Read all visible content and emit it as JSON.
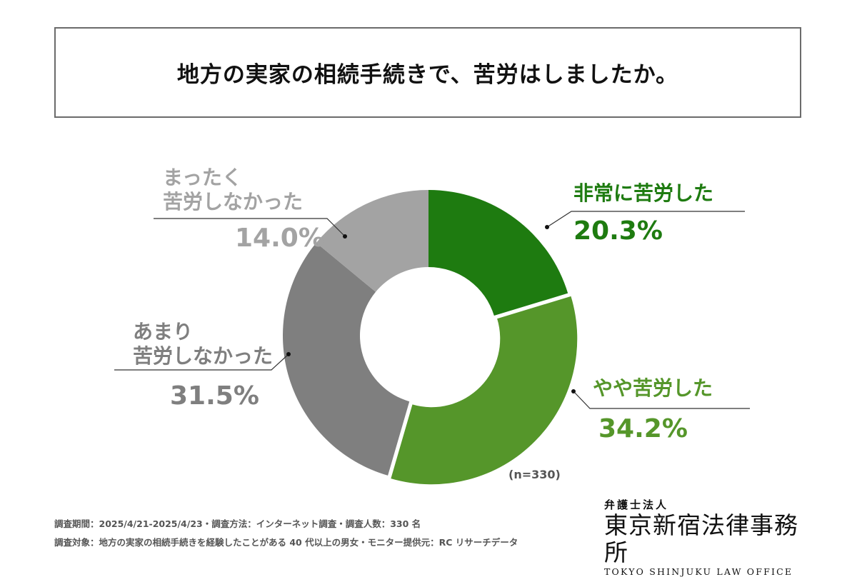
{
  "title": "地方の実家の相続手続きで、苦労はしましたか。",
  "chart_data": {
    "type": "pie",
    "title": "地方の実家の相続手続きで、苦労はしましたか。",
    "categories": [
      "非常に苦労した",
      "やや苦労した",
      "あまり\n苦労しなかった",
      "まったく\n苦労しなかった"
    ],
    "values": [
      20.3,
      34.2,
      31.5,
      14.0
    ],
    "value_labels": [
      "20.3%",
      "34.2%",
      "31.5%",
      "14.0%"
    ],
    "colors": [
      "#1e7b10",
      "#55962a",
      "#7f7f7f",
      "#a3a3a3"
    ],
    "label_colors": [
      "#1e7b10",
      "#55962a",
      "#7f7f7f",
      "#a3a3a3"
    ],
    "donut": true,
    "start": "12 o'clock",
    "direction": "clockwise",
    "note": "(n=330)"
  },
  "footer": {
    "line1": "調査期間：2025/4/21-2025/4/23・調査方法：インターネット調査・調査人数：330 名",
    "line2": "調査対象：地方の実家の相続手続きを経験したことがある 40 代以上の男女・モニター提供元：RC リサーチデータ"
  },
  "logo": {
    "top": "弁護士法人",
    "main": "東京新宿法律事務所",
    "sub": "TOKYO SHINJUKU LAW OFFICE"
  }
}
